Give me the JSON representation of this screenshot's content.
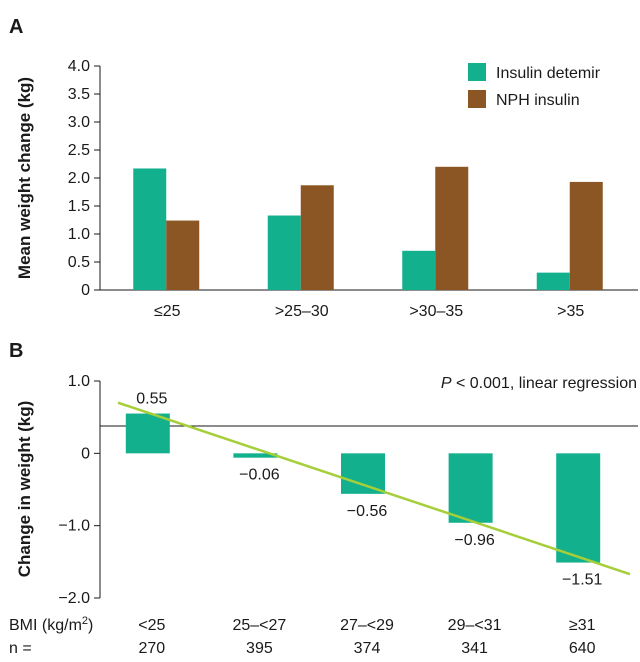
{
  "chart_data": [
    {
      "panel": "A",
      "type": "bar",
      "ylabel": "Mean weight change (kg)",
      "ylim": [
        0,
        4.0
      ],
      "yticks": [
        "0",
        "0.5",
        "1.0",
        "1.5",
        "2.0",
        "2.5",
        "3.0",
        "3.5",
        "4.0"
      ],
      "categories": [
        "≤25",
        ">25–30",
        ">30–35",
        ">35"
      ],
      "series": [
        {
          "name": "Insulin detemir",
          "color": "#13b08e",
          "values": [
            2.17,
            1.33,
            0.7,
            0.31
          ]
        },
        {
          "name": "NPH insulin",
          "color": "#8b5623",
          "values": [
            1.24,
            1.87,
            2.2,
            1.93
          ]
        }
      ],
      "legend_position": "top-right",
      "grid": false
    },
    {
      "panel": "B",
      "type": "bar",
      "ylabel": "Change in weight (kg)",
      "ylim": [
        -2.0,
        1.0
      ],
      "yticks": [
        "−2.0",
        "−1.0",
        "0",
        "1.0"
      ],
      "categories": [
        "<25",
        "25–<27",
        "27–<29",
        "29–<31",
        "≥31"
      ],
      "values": [
        0.55,
        -0.06,
        -0.56,
        -0.96,
        -1.51
      ],
      "value_labels": [
        "0.55",
        "−0.06",
        "−0.56",
        "−0.96",
        "−1.51"
      ],
      "color": "#13b08e",
      "trend_line": {
        "color": "#a6ce39",
        "start": 0.7,
        "end": -1.67
      },
      "annotation": {
        "p_symbol": "P",
        "text": " < 0.001, linear regression"
      },
      "row_labels": {
        "bmi_prefix": "BMI (kg/m",
        "bmi_sup": "2",
        "bmi_suffix": ")",
        "n_label": "n ="
      },
      "n_values": [
        "270",
        "395",
        "374",
        "341",
        "640"
      ],
      "grid": false
    }
  ]
}
